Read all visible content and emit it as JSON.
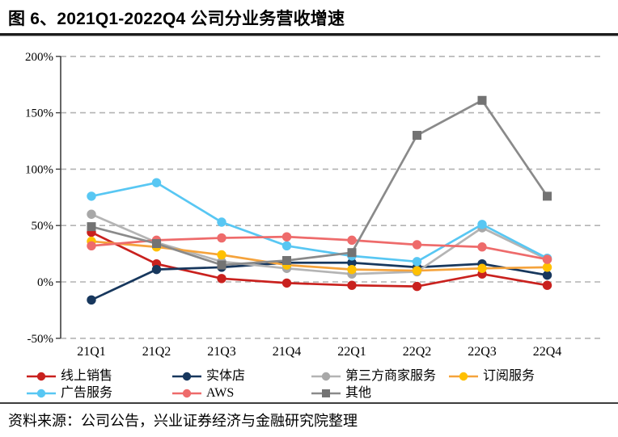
{
  "header": {
    "title": "图 6、2021Q1-2022Q4 公司分业务营收增速"
  },
  "footer": {
    "source": "资料来源：公司公告，兴业证券经济与金融研究院整理"
  },
  "chart_data": {
    "type": "line",
    "title": "2021Q1-2022Q4 公司分业务营收增速",
    "categories": [
      "21Q1",
      "21Q2",
      "21Q3",
      "21Q4",
      "22Q1",
      "22Q2",
      "22Q3",
      "22Q4"
    ],
    "y_ticks": [
      "200%",
      "150%",
      "100%",
      "50%",
      "0%",
      "-50%"
    ],
    "ylim": [
      -50,
      200
    ],
    "unit": "%",
    "grid": "horizontal-dashed",
    "legend_position": "bottom-left",
    "series": [
      {
        "id": "online-sales",
        "name": "线上销售",
        "color": "#C9211E",
        "line_color": "#C9211E",
        "marker": "circle",
        "values": [
          44,
          16,
          3,
          -1,
          -3,
          -4,
          7,
          -3
        ]
      },
      {
        "id": "physical-stores",
        "name": "实体店",
        "color": "#17375D",
        "line_color": "#17375D",
        "marker": "circle",
        "values": [
          -16,
          11,
          13,
          17,
          17,
          13,
          16,
          6
        ]
      },
      {
        "id": "third-party-seller-services",
        "name": "第三方商家服务",
        "color": "#A8A8A8",
        "line_color": "#B4B4B4",
        "marker": "circle",
        "values": [
          60,
          35,
          18,
          12,
          7,
          9,
          48,
          20
        ]
      },
      {
        "id": "subscription-services",
        "name": "订阅服务",
        "color": "#FFC000",
        "line_color": "#F5A33C",
        "marker": "circle",
        "values": [
          36,
          31,
          24,
          15,
          11,
          10,
          12,
          13
        ]
      },
      {
        "id": "advertising-services",
        "name": "广告服务",
        "color": "#58C7F3",
        "line_color": "#58C7F3",
        "marker": "circle",
        "values": [
          76,
          88,
          53,
          32,
          23,
          18,
          51,
          21
        ]
      },
      {
        "id": "aws",
        "name": "AWS",
        "color": "#EE6B6B",
        "line_color": "#EE6B6B",
        "marker": "circle",
        "values": [
          32,
          37,
          39,
          40,
          37,
          33,
          31,
          20
        ]
      },
      {
        "id": "other",
        "name": "其他",
        "color": "#737373",
        "line_color": "#8A8A8A",
        "marker": "square",
        "values": [
          49,
          34,
          15,
          19,
          26,
          130,
          161,
          76
        ]
      }
    ]
  }
}
